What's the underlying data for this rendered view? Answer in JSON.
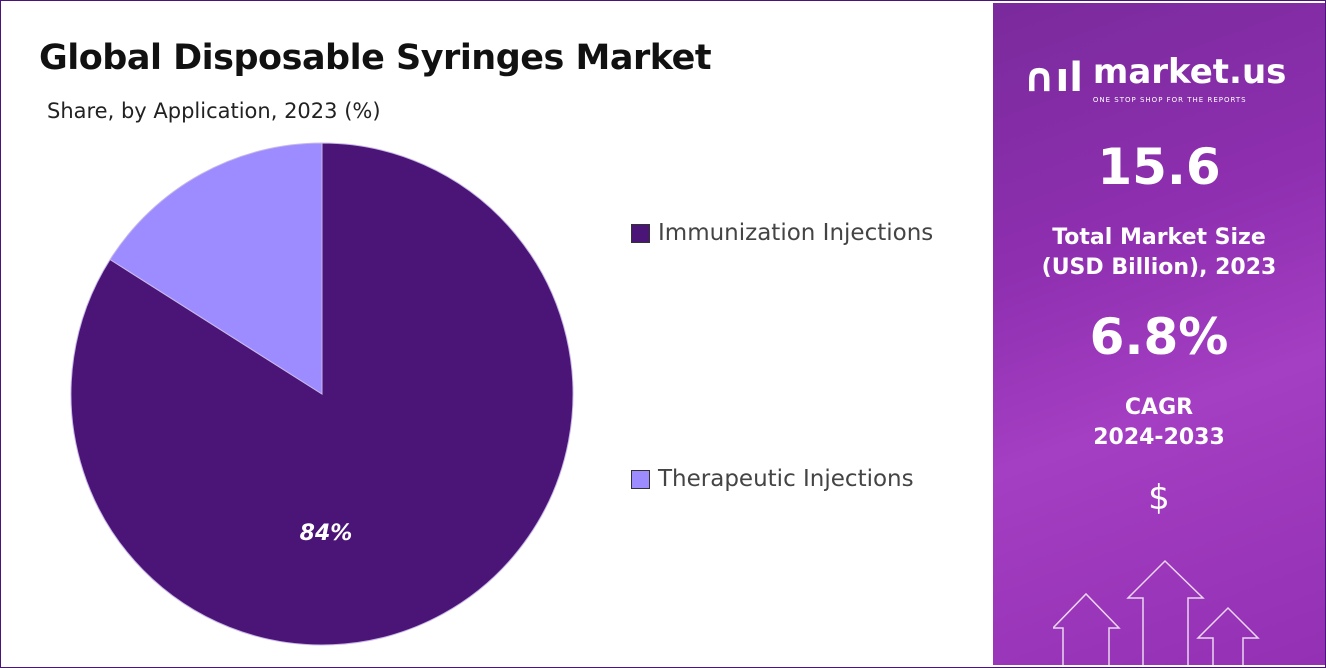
{
  "chart_data": {
    "type": "pie",
    "title": "Global Disposable Syringes Market",
    "subtitle": "Share, by Application, 2023 (%)",
    "slices": [
      {
        "label": "Immunization Injections",
        "value": 84,
        "color": "#4b1578",
        "data_label": "84%"
      },
      {
        "label": "Therapeutic Injections",
        "value": 16,
        "color": "#9c8cff",
        "data_label": ""
      }
    ],
    "legend_position": "right"
  },
  "side_panel": {
    "logo_name": "market.us",
    "logo_tagline": "ONE STOP SHOP FOR THE REPORTS",
    "market_size": "15.6",
    "market_size_label_1": "Total Market Size",
    "market_size_label_2": "(USD Billion), 2023",
    "cagr": "6.8%",
    "cagr_label_1": "CAGR",
    "cagr_label_2": "2024-2033",
    "currency_symbol": "$"
  }
}
